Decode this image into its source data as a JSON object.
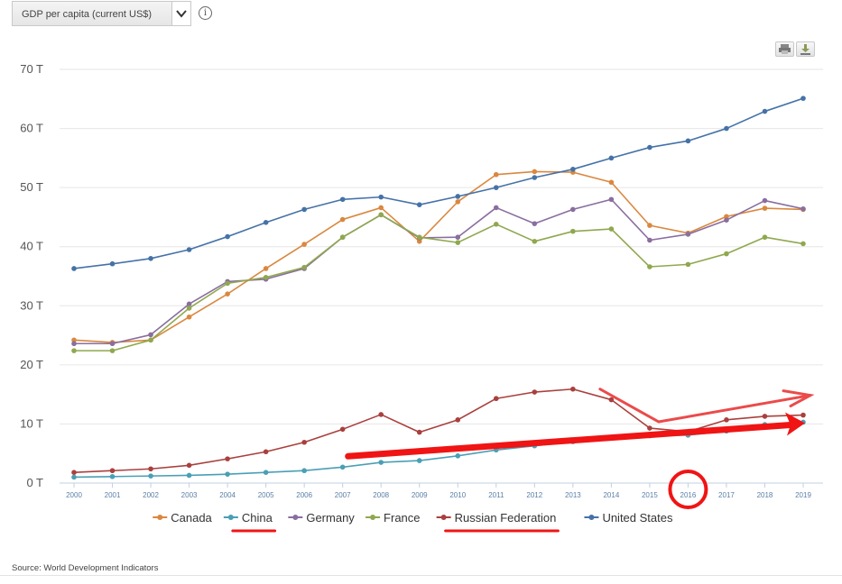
{
  "header": {
    "indicator_label": "GDP per capita (current US$)",
    "info_icon": "i"
  },
  "toolbar": {
    "print_icon": "print-icon",
    "download_icon": "download-icon"
  },
  "source_text": "Source: World Development Indicators",
  "chart_data": {
    "type": "line",
    "title": "",
    "xlabel": "",
    "ylabel": "",
    "x": [
      2000,
      2001,
      2002,
      2003,
      2004,
      2005,
      2006,
      2007,
      2008,
      2009,
      2010,
      2011,
      2012,
      2013,
      2014,
      2015,
      2016,
      2017,
      2018,
      2019
    ],
    "y_ticks": [
      "0 T",
      "10 T",
      "20 T",
      "30 T",
      "40 T",
      "50 T",
      "60 T",
      "70 T"
    ],
    "ylim": [
      0,
      70
    ],
    "grid": true,
    "legend_position": "bottom",
    "series": [
      {
        "name": "Canada",
        "color": "#d9883f",
        "values": [
          24.2,
          23.8,
          24.2,
          28.1,
          32.0,
          36.3,
          40.4,
          44.6,
          46.6,
          40.9,
          47.6,
          52.2,
          52.7,
          52.6,
          50.9,
          43.6,
          42.3,
          45.1,
          46.5,
          46.3
        ]
      },
      {
        "name": "China",
        "color": "#4a9fb5",
        "values": [
          1.0,
          1.1,
          1.2,
          1.3,
          1.5,
          1.8,
          2.1,
          2.7,
          3.5,
          3.8,
          4.6,
          5.6,
          6.3,
          7.0,
          7.7,
          8.0,
          8.1,
          8.8,
          9.9,
          10.3
        ]
      },
      {
        "name": "Germany",
        "color": "#8a6e9f",
        "values": [
          23.6,
          23.6,
          25.1,
          30.3,
          34.1,
          34.5,
          36.3,
          41.6,
          45.4,
          41.5,
          41.6,
          46.6,
          43.9,
          46.3,
          48.0,
          41.1,
          42.1,
          44.5,
          47.8,
          46.4
        ]
      },
      {
        "name": "France",
        "color": "#8fa84f",
        "values": [
          22.4,
          22.4,
          24.2,
          29.6,
          33.8,
          34.8,
          36.5,
          41.6,
          45.4,
          41.6,
          40.7,
          43.8,
          40.9,
          42.6,
          43.0,
          36.6,
          37.0,
          38.8,
          41.6,
          40.5
        ]
      },
      {
        "name": "Russian Federation",
        "color": "#a9403d",
        "values": [
          1.8,
          2.1,
          2.4,
          3.0,
          4.1,
          5.3,
          6.9,
          9.1,
          11.6,
          8.6,
          10.7,
          14.3,
          15.4,
          15.9,
          14.1,
          9.3,
          8.7,
          10.7,
          11.3,
          11.5
        ]
      },
      {
        "name": "United States",
        "color": "#4572a7",
        "values": [
          36.3,
          37.1,
          38.0,
          39.5,
          41.7,
          44.1,
          46.3,
          48.0,
          48.4,
          47.1,
          48.5,
          50.0,
          51.7,
          53.1,
          55.0,
          56.8,
          57.9,
          60.0,
          62.9,
          65.1
        ]
      }
    ]
  }
}
